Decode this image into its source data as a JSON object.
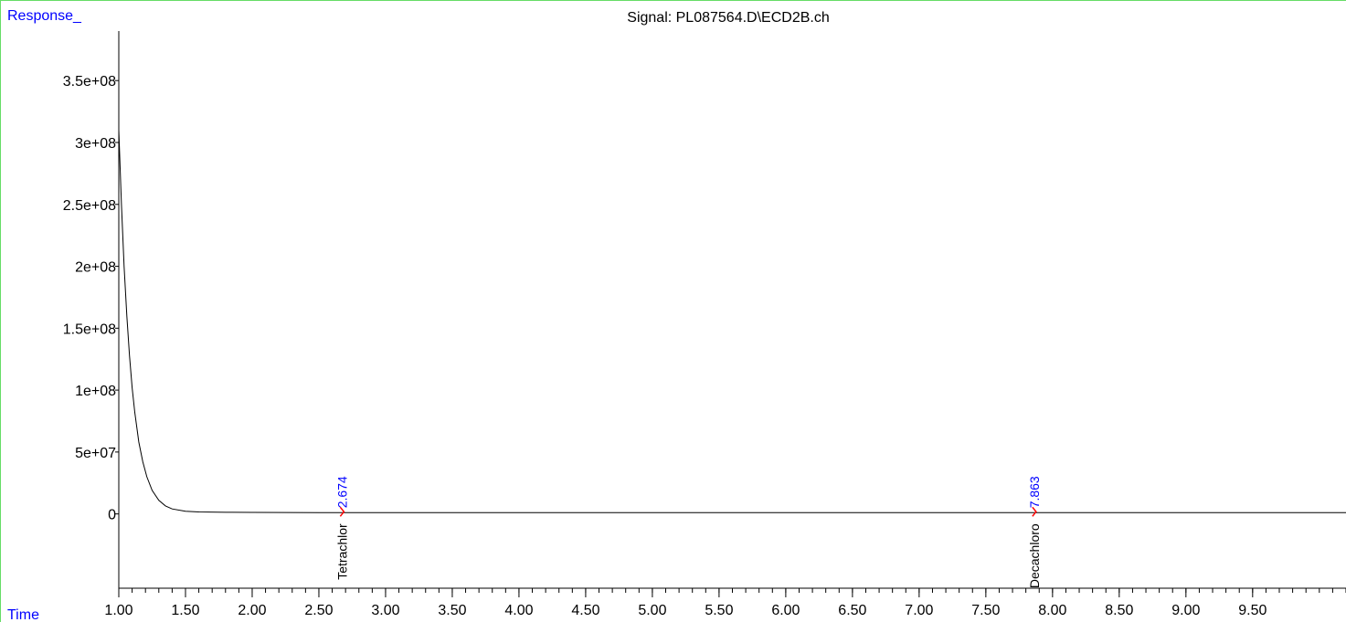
{
  "chart_data": {
    "type": "line",
    "title": "Signal: PL087564.D\\ECD2B.ch",
    "ylabel": "Response_",
    "xlabel": "Time",
    "xlim": [
      1.0,
      10.2
    ],
    "ylim": [
      -60000000,
      390000000
    ],
    "x_ticks": [
      "1.00",
      "1.50",
      "2.00",
      "2.50",
      "3.00",
      "3.50",
      "4.00",
      "4.50",
      "5.00",
      "5.50",
      "6.00",
      "6.50",
      "7.00",
      "7.50",
      "8.00",
      "8.50",
      "9.00",
      "9.50"
    ],
    "x_tick_values": [
      1.0,
      1.5,
      2.0,
      2.5,
      3.0,
      3.5,
      4.0,
      4.5,
      5.0,
      5.5,
      6.0,
      6.5,
      7.0,
      7.5,
      8.0,
      8.5,
      9.0,
      9.5
    ],
    "y_ticks": [
      "3.5e+08",
      "3e+08",
      "2.5e+08",
      "2e+08",
      "1.5e+08",
      "1e+08",
      "5e+07",
      "0"
    ],
    "y_tick_values": [
      350000000,
      300000000,
      250000000,
      200000000,
      150000000,
      100000000,
      50000000,
      0
    ],
    "series": [
      {
        "x": [
          1.0,
          1.02,
          1.04,
          1.06,
          1.08,
          1.1,
          1.12,
          1.15,
          1.18,
          1.21,
          1.25,
          1.3,
          1.35,
          1.4,
          1.5,
          1.6,
          1.8,
          2.0,
          2.5,
          3.0,
          4.0,
          5.0,
          6.0,
          7.0,
          8.0,
          9.0,
          10.2
        ],
        "y": [
          310000000,
          250000000,
          200000000,
          160000000,
          128000000,
          102000000,
          82000000,
          58000000,
          42000000,
          30000000,
          19000000,
          11000000,
          6500000,
          4000000,
          2200000,
          1600000,
          1300000,
          1200000,
          1100000,
          1050000,
          1000000,
          1000000,
          1000000,
          1000000,
          1000000,
          1000000,
          1000000
        ]
      }
    ],
    "peaks": [
      {
        "rt": "2.674",
        "x": 2.674,
        "compound": "Tetrachlor"
      },
      {
        "rt": "7.863",
        "x": 7.863,
        "compound": "Decachloro"
      }
    ],
    "colors": {
      "axis": "#000000",
      "trace": "#000000",
      "header_label": "#0000ff",
      "rt_label": "#0000ff",
      "peak_marker": "#ff0000",
      "frame": "#66dd66"
    },
    "grid": false
  }
}
